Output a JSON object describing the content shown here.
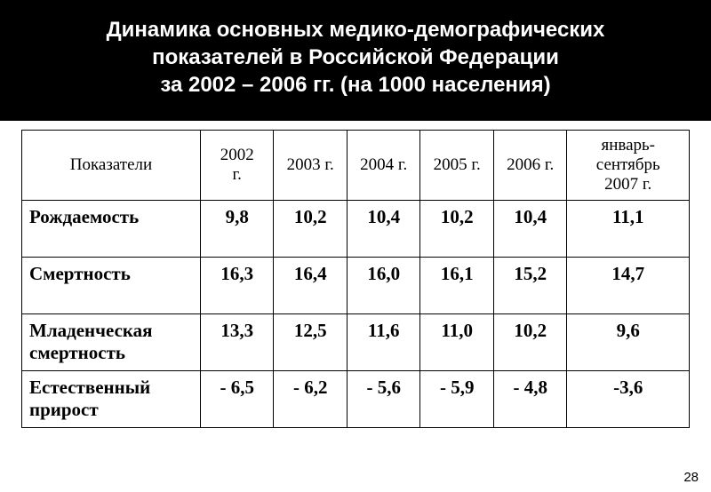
{
  "title": {
    "line1": "Динамика основных медико-демографических",
    "line2": "показателей в Российской Федерации",
    "line3": "за 2002 – 2006 гг.  (на 1000 населения)"
  },
  "table": {
    "header": {
      "indicator": "Показатели",
      "c1_l1": "2002",
      "c1_l2": "г.",
      "c2": "2003 г.",
      "c3": "2004 г.",
      "c4": "2005 г.",
      "c5": "2006 г.",
      "c6_l1": "январь-",
      "c6_l2": "сентябрь",
      "c6_l3": "2007 г."
    },
    "rows": {
      "r1": {
        "label": "Рождаемость",
        "v1": "9,8",
        "v2": "10,2",
        "v3": "10,4",
        "v4": "10,2",
        "v5": "10,4",
        "v6": "11,1"
      },
      "r2": {
        "label": "Смертность",
        "v1": "16,3",
        "v2": "16,4",
        "v3": "16,0",
        "v4": "16,1",
        "v5": "15,2",
        "v6": "14,7"
      },
      "r3": {
        "label_l1": "Младенческая",
        "label_l2": "смертность",
        "v1": "13,3",
        "v2": "12,5",
        "v3": "11,6",
        "v4": "11,0",
        "v5": "10,2",
        "v6": "9,6"
      },
      "r4": {
        "label_l1": "Естественный",
        "label_l2": "прирост",
        "v1": "- 6,5",
        "v2": "- 6,2",
        "v3": "- 5,6",
        "v4": "- 5,9",
        "v5": "- 4,8",
        "v6": "-3,6"
      }
    }
  },
  "page_number": "28"
}
